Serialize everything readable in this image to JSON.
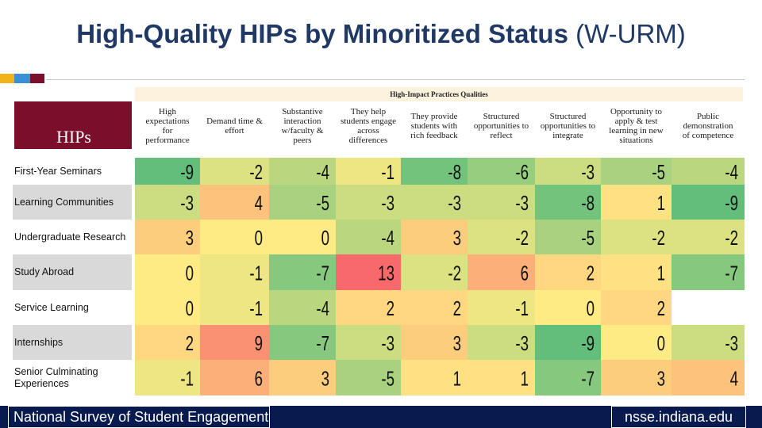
{
  "slide": {
    "title_bold": "High-Quality HIPs by Minoritized Status",
    "title_paren": "(W-URM)",
    "accent_colors": [
      "#f2b31a",
      "#3b8fd6",
      "#7a0e2b"
    ]
  },
  "footer": {
    "left_text": "National Survey of Student Engagement",
    "right_text": "nsse.indiana.edu",
    "bg_color": "#091b4e"
  },
  "chart_data": {
    "type": "heatmap",
    "title": "High-Impact Practices Qualities",
    "row_header": "HIPs",
    "columns": [
      "High expectations for performance",
      "Demand time & effort",
      "Substantive interaction w/faculty & peers",
      "They help students engage across differences",
      "They provide students with rich feedback",
      "Structured opportunities to reflect",
      "Structured opportunities to integrate",
      "Opportunity to apply & test learning in new situations",
      "Public demonstration of competence"
    ],
    "column_lines": [
      [
        "High",
        "expectations",
        "for",
        "performance"
      ],
      [
        "Demand time &",
        "effort"
      ],
      [
        "Substantive",
        "interaction",
        "w/faculty &",
        "peers"
      ],
      [
        "They help",
        "students engage",
        "across",
        "differences"
      ],
      [
        "They provide",
        "students with",
        "rich feedback"
      ],
      [
        "Structured",
        "opportunities to",
        "reflect"
      ],
      [
        "Structured",
        "opportunities to",
        "integrate"
      ],
      [
        "Opportunity to",
        "apply & test",
        "learning in new",
        "situations"
      ],
      [
        "Public",
        "demonstration",
        "of competence"
      ]
    ],
    "rows": [
      {
        "label": "First-Year Seminars",
        "values": [
          -9,
          -2,
          -4,
          -1,
          -8,
          -6,
          -3,
          -5,
          -4
        ]
      },
      {
        "label": "Learning Communities",
        "values": [
          -3,
          4,
          -5,
          -3,
          -3,
          -3,
          -8,
          1,
          -9
        ]
      },
      {
        "label": "Undergraduate Research",
        "values": [
          3,
          0,
          0,
          -4,
          3,
          -2,
          -5,
          -2,
          -2
        ]
      },
      {
        "label": "Study Abroad",
        "values": [
          0,
          -1,
          -7,
          13,
          -2,
          6,
          2,
          1,
          -7
        ]
      },
      {
        "label": "Service Learning",
        "values": [
          0,
          -1,
          -4,
          2,
          2,
          -1,
          0,
          2
        ]
      },
      {
        "label": "Internships",
        "values": [
          2,
          9,
          -7,
          -3,
          3,
          -3,
          -9,
          0,
          -3
        ]
      },
      {
        "label": "Senior Culminating Experiences",
        "values": [
          -1,
          6,
          3,
          -5,
          1,
          1,
          -7,
          3,
          4
        ]
      }
    ],
    "value_notes": "Service Learning row shows 8 visible values; last cell blank",
    "color_scale": {
      "min": -9,
      "mid": 0,
      "max": 13,
      "min_color": "#63be7b",
      "mid_color": "#ffeb84",
      "max_color": "#f8696b"
    }
  }
}
